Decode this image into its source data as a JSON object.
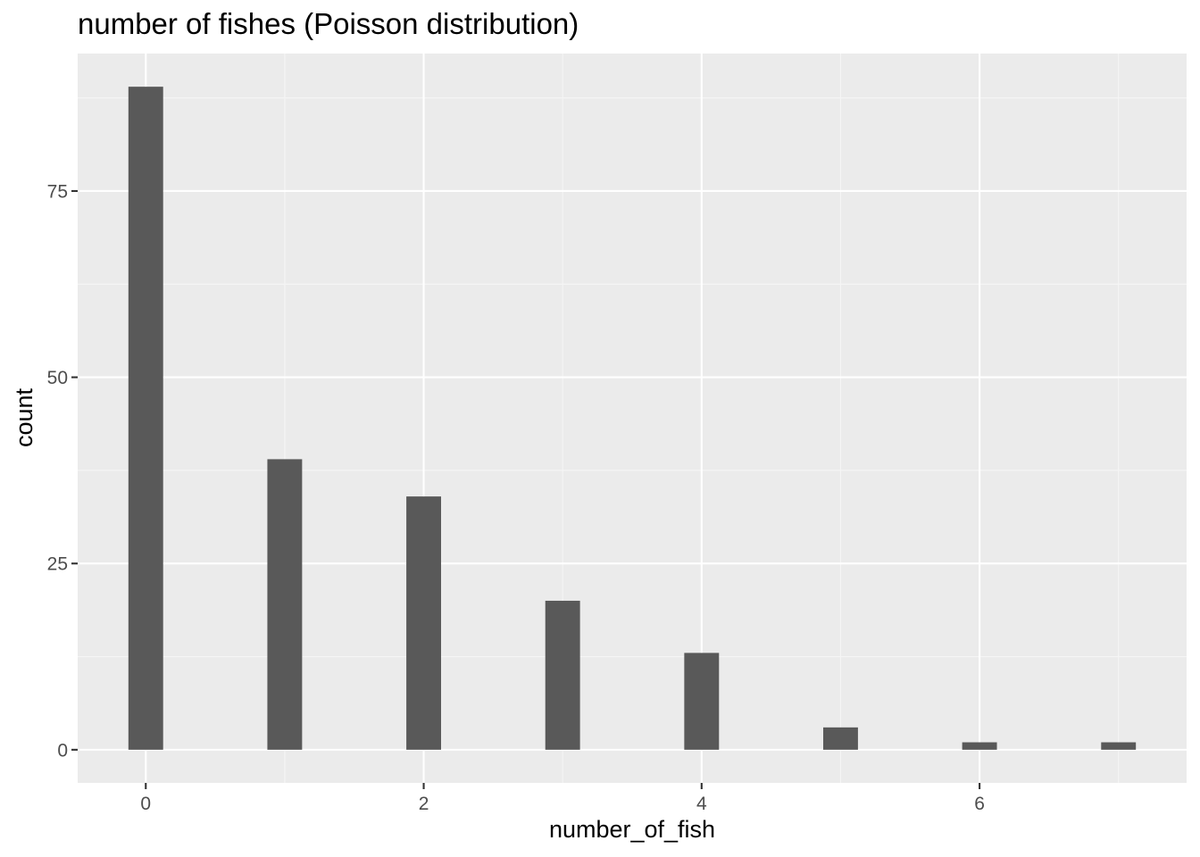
{
  "chart_data": {
    "type": "bar",
    "title": "number of fishes (Poisson distribution)",
    "xlabel": "number_of_fish",
    "ylabel": "count",
    "categories": [
      0,
      1,
      2,
      3,
      4,
      5,
      6,
      7
    ],
    "x": [
      0,
      1,
      2,
      3,
      4,
      5,
      6,
      7
    ],
    "values": [
      89,
      39,
      34,
      20,
      13,
      3,
      1,
      1
    ],
    "xlim": [
      -0.49,
      7.49
    ],
    "ylim": [
      -4.45,
      93.45
    ],
    "x_ticks": [
      0,
      2,
      4,
      6
    ],
    "y_ticks": [
      0,
      25,
      50,
      75
    ],
    "grid": true,
    "legend": "none",
    "colors": {
      "panel_background": "#EBEBEB",
      "grid_major": "#FFFFFF",
      "grid_minor": "#F5F5F5",
      "bar_fill": "#595959",
      "tick_text": "#4D4D4D",
      "tick_mark": "#333333"
    }
  }
}
